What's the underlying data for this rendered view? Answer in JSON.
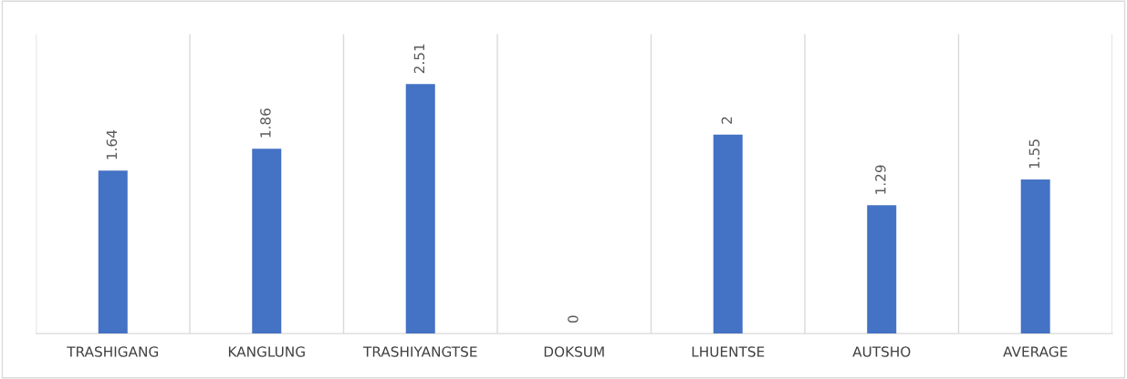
{
  "chart_data": {
    "type": "bar",
    "categories": [
      "TRASHIGANG",
      "KANGLUNG",
      "TRASHIYANGTSE",
      "DOKSUM",
      "LHUENTSE",
      "AUTSHO",
      "AVERAGE"
    ],
    "values": [
      1.64,
      1.86,
      2.51,
      0,
      2,
      1.29,
      1.55
    ],
    "color": "#4472c4",
    "data_labels": true,
    "grid": "x",
    "legend": false
  }
}
